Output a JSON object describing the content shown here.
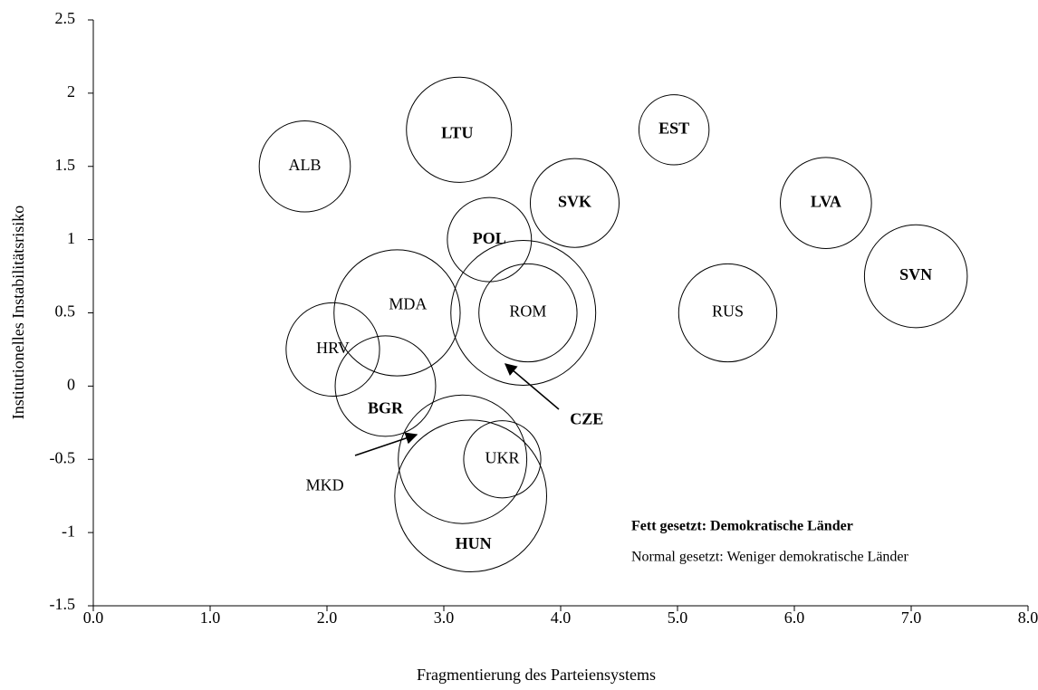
{
  "chart_data": {
    "type": "bubble",
    "x_label": "Fragmentierung des Parteiensystems",
    "y_label": "Institutionelles Instabilitätsrisiko",
    "labels": [
      "ALB",
      "LTU",
      "EST",
      "SVK",
      "LVA",
      "SVN",
      "POL",
      "MDA",
      "ROM",
      "CZE",
      "RUS",
      "HRV",
      "BGR",
      "MKD",
      "UKR",
      "HUN"
    ],
    "bold": [
      false,
      true,
      true,
      true,
      true,
      true,
      true,
      false,
      false,
      true,
      false,
      false,
      true,
      false,
      false,
      true
    ],
    "x": [
      1.81,
      3.13,
      4.97,
      4.12,
      6.27,
      7.04,
      3.39,
      2.6,
      3.72,
      3.68,
      5.43,
      2.05,
      2.5,
      3.16,
      3.5,
      3.23
    ],
    "values": [
      1.5,
      1.75,
      1.75,
      1.25,
      1.25,
      0.75,
      1.0,
      0.5,
      0.5,
      0.5,
      0.5,
      0.25,
      0,
      -0.5,
      -0.5,
      -0.75
    ],
    "sizes": [
      0.39,
      0.45,
      0.3,
      0.38,
      0.39,
      0.44,
      0.36,
      0.54,
      0.42,
      0.62,
      0.42,
      0.4,
      0.43,
      0.55,
      0.33,
      0.65
    ],
    "xlim": [
      0,
      8
    ],
    "ylim": [
      -1.5,
      2.5
    ],
    "xticks": [
      {
        "value": 0,
        "label": "0.0"
      },
      {
        "value": 1,
        "label": "1.0"
      },
      {
        "value": 2,
        "label": "2.0"
      },
      {
        "value": 3,
        "label": "3.0"
      },
      {
        "value": 4,
        "label": "4.0"
      },
      {
        "value": 5,
        "label": "5.0"
      },
      {
        "value": 6,
        "label": "6.0"
      },
      {
        "value": 7,
        "label": "7.0"
      },
      {
        "value": 8,
        "label": "8.0"
      }
    ],
    "yticks": [
      2.5,
      2,
      1.5,
      1,
      0.5,
      0,
      -0.5,
      -1,
      -1.5
    ],
    "annotations": [
      "Fett gesetzt: Demokratische Länder",
      "Normal gesetzt: Weniger demokratische Länder"
    ]
  }
}
